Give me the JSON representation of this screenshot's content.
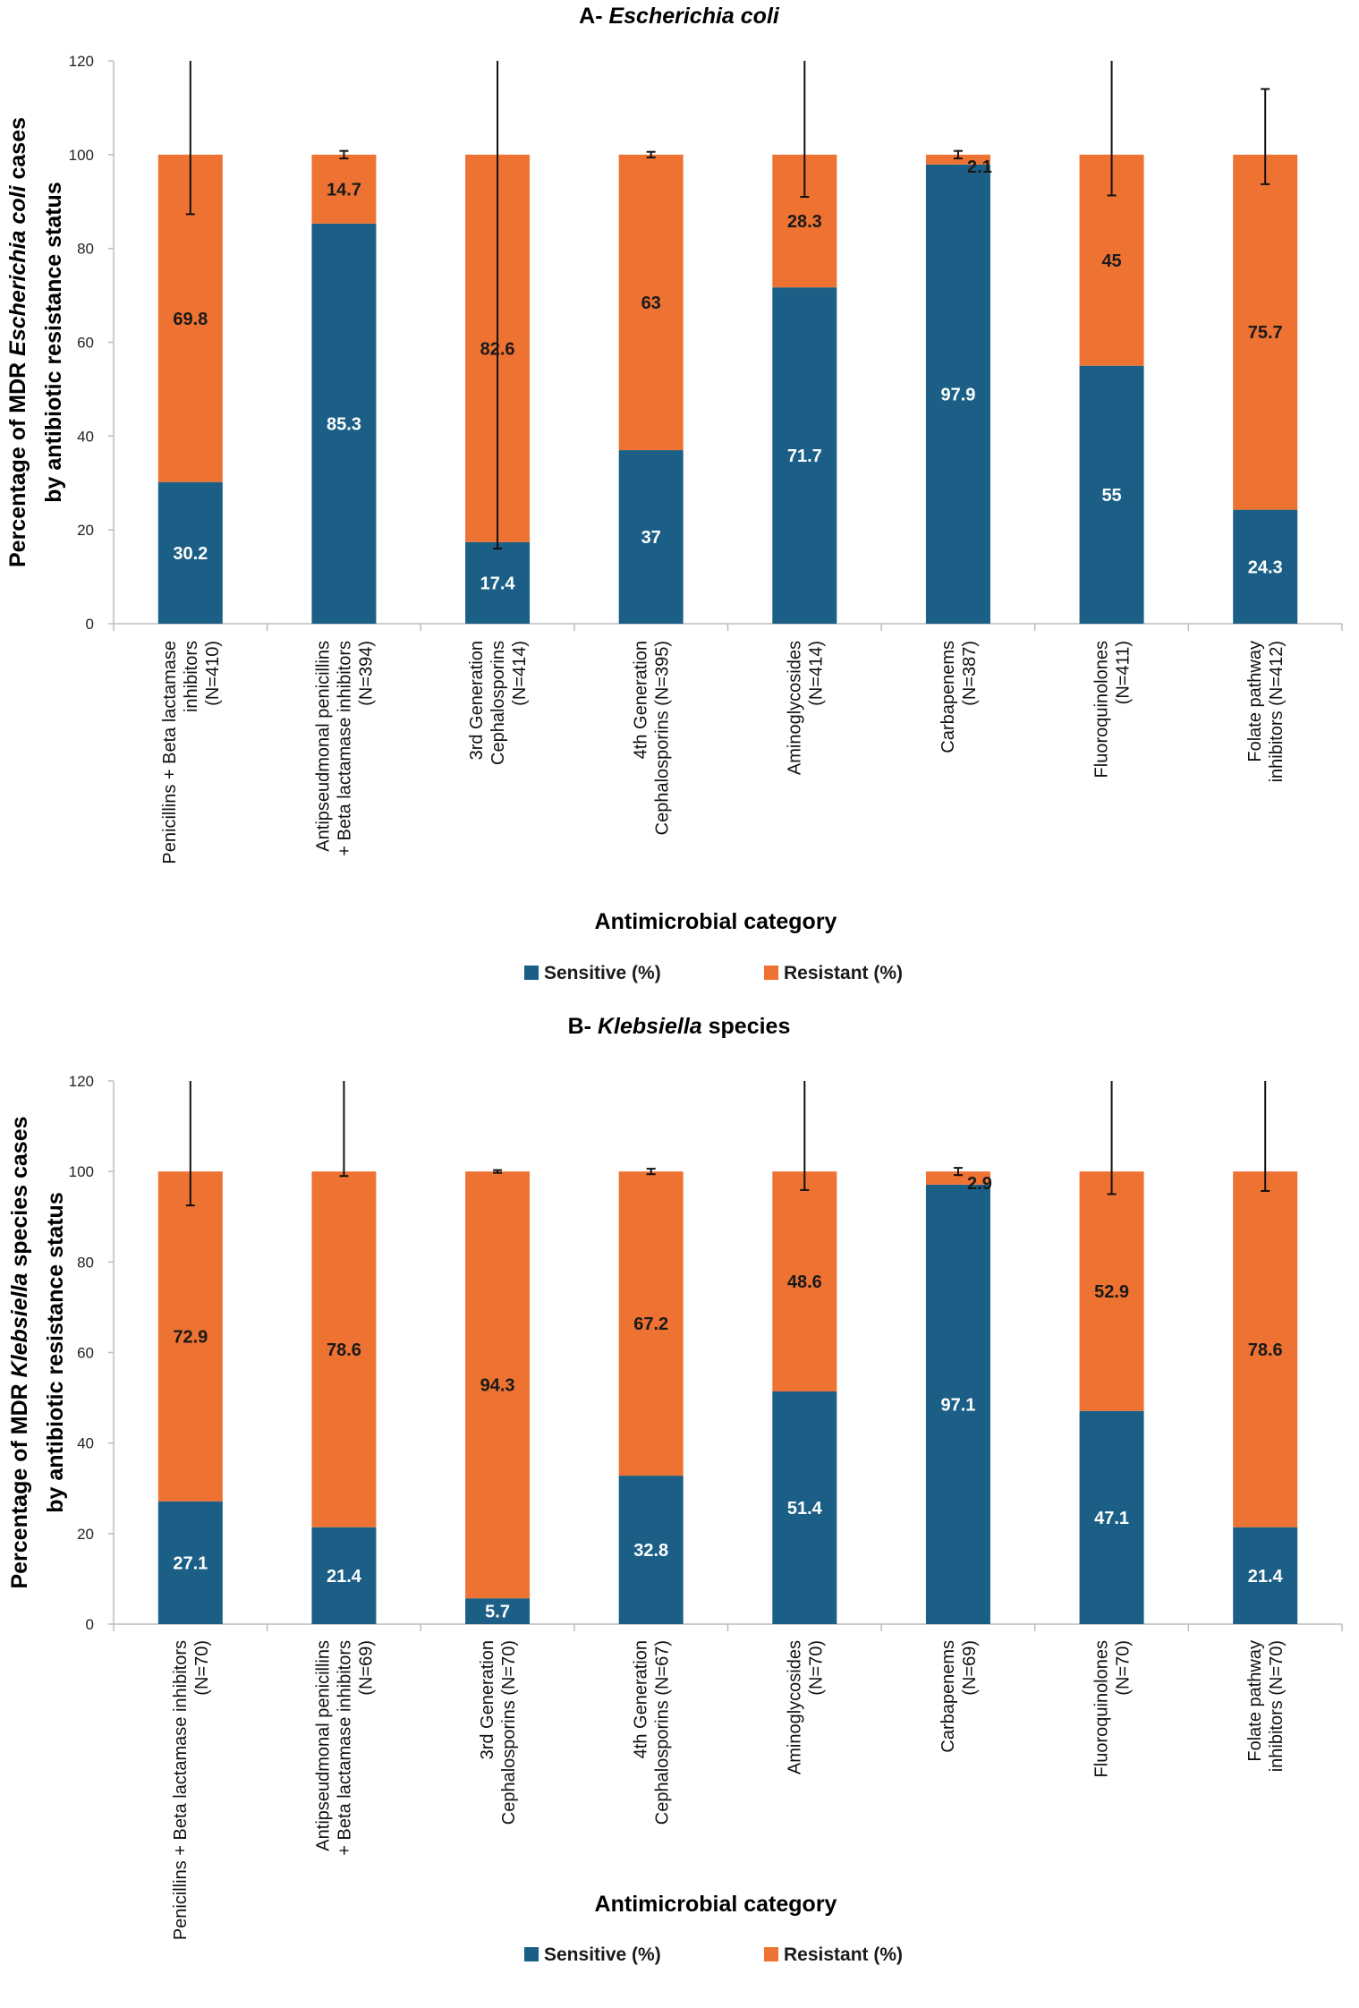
{
  "colors": {
    "sensitive": "#1b5f86",
    "resistant": "#ee7232",
    "axis": "#bdbdbd",
    "errorbar": "#111111"
  },
  "chart_data": [
    {
      "type": "bar",
      "stacked": true,
      "title_prefix": "A- ",
      "title_italic": "Escherichia coli",
      "title_suffix": "",
      "ylabel_line1_pre": "Percentage of MDR ",
      "ylabel_line1_italic": "Escherichia coli",
      "ylabel_line1_post": " cases",
      "ylabel_line2": "by antibiotic resistance status",
      "xlabel": "Antimicrobial category",
      "ylim": [
        0,
        120
      ],
      "yticks": [
        "0",
        "20",
        "40",
        "60",
        "80",
        "100",
        "120"
      ],
      "categories": [
        [
          "Penicillins + Beta lactamase",
          "inhibitors",
          "(N=410)"
        ],
        [
          "Antipseudmonal penicillins",
          "+ Beta lactamase inhibitors",
          "(N=394)"
        ],
        [
          "3rd Generation",
          "Cephalosporins",
          "(N=414)"
        ],
        [
          "4th Generation",
          "Cephalosporins (N=395)"
        ],
        [
          "Aminoglycosides",
          "(N=414)"
        ],
        [
          "Carbapenems",
          "(N=387)"
        ],
        [
          "Fluoroquinolones",
          "(N=411)"
        ],
        [
          "Folate pathway",
          "inhibitors (N=412)"
        ]
      ],
      "series": [
        {
          "name": "Sensitive (%)",
          "values": [
            30.2,
            85.3,
            17.4,
            37,
            71.7,
            97.9,
            55,
            24.3
          ],
          "labels": [
            "30.2",
            "85.3",
            "17.4",
            "37",
            "71.7",
            "97.9",
            "55",
            "24.3"
          ]
        },
        {
          "name": "Resistant (%)",
          "values": [
            69.8,
            14.7,
            82.6,
            63,
            28.3,
            2.1,
            45,
            75.7
          ],
          "labels": [
            "69.8",
            "14.7",
            "82.6",
            "63",
            "28.3",
            "2.1",
            "45",
            "75.7"
          ]
        }
      ],
      "error_bars": [
        [
          87.3,
          120
        ],
        [
          99.2,
          100.8
        ],
        [
          16,
          120
        ],
        [
          99.4,
          100.6
        ],
        [
          91,
          120
        ],
        [
          99.2,
          100.8
        ],
        [
          91.3,
          120
        ],
        [
          93.7,
          114
        ]
      ],
      "legend": [
        "Sensitive (%)",
        "Resistant (%)"
      ]
    },
    {
      "type": "bar",
      "stacked": true,
      "title_prefix": "B- ",
      "title_italic": "Klebsiella",
      "title_suffix": " species",
      "ylabel_line1_pre": "Percentage of MDR ",
      "ylabel_line1_italic": "Klebsiella",
      "ylabel_line1_post": " species cases",
      "ylabel_line2": "by antibiotic resistance status",
      "xlabel": "Antimicrobial category",
      "ylim": [
        0,
        120
      ],
      "yticks": [
        "0",
        "20",
        "40",
        "60",
        "80",
        "100",
        "120"
      ],
      "categories": [
        [
          "Penicillins + Beta lactamase inhibitors",
          "(N=70)"
        ],
        [
          "Antipseudmonal penicillins",
          "+ Beta lactamase inhibitors",
          "(N=69)"
        ],
        [
          "3rd Generation",
          "Cephalosporins (N=70)"
        ],
        [
          "4th Generation",
          "Cephalosporins (N=67)"
        ],
        [
          "Aminoglycosides",
          "(N=70)"
        ],
        [
          "Carbapenems",
          "(N=69)"
        ],
        [
          "Fluoroquinolones",
          "(N=70)"
        ],
        [
          "Folate pathway",
          "inhibitors (N=70)"
        ]
      ],
      "series": [
        {
          "name": "Sensitive (%)",
          "values": [
            27.1,
            21.4,
            5.7,
            32.8,
            51.4,
            97.1,
            47.1,
            21.4
          ],
          "labels": [
            "27.1",
            "21.4",
            "5.7",
            "32.8",
            "51.4",
            "97.1",
            "47.1",
            "21.4"
          ]
        },
        {
          "name": "Resistant (%)",
          "values": [
            72.9,
            78.6,
            94.3,
            67.2,
            48.6,
            2.9,
            52.9,
            78.6
          ],
          "labels": [
            "72.9",
            "78.6",
            "94.3",
            "67.2",
            "48.6",
            "2.9",
            "52.9",
            "78.6"
          ]
        }
      ],
      "error_bars": [
        [
          92.5,
          120
        ],
        [
          99,
          120
        ],
        [
          99.7,
          100.3
        ],
        [
          99.4,
          100.6
        ],
        [
          95.9,
          120
        ],
        [
          99.2,
          100.8
        ],
        [
          95,
          120
        ],
        [
          95.7,
          120
        ]
      ],
      "legend": [
        "Sensitive (%)",
        "Resistant (%)"
      ]
    }
  ]
}
